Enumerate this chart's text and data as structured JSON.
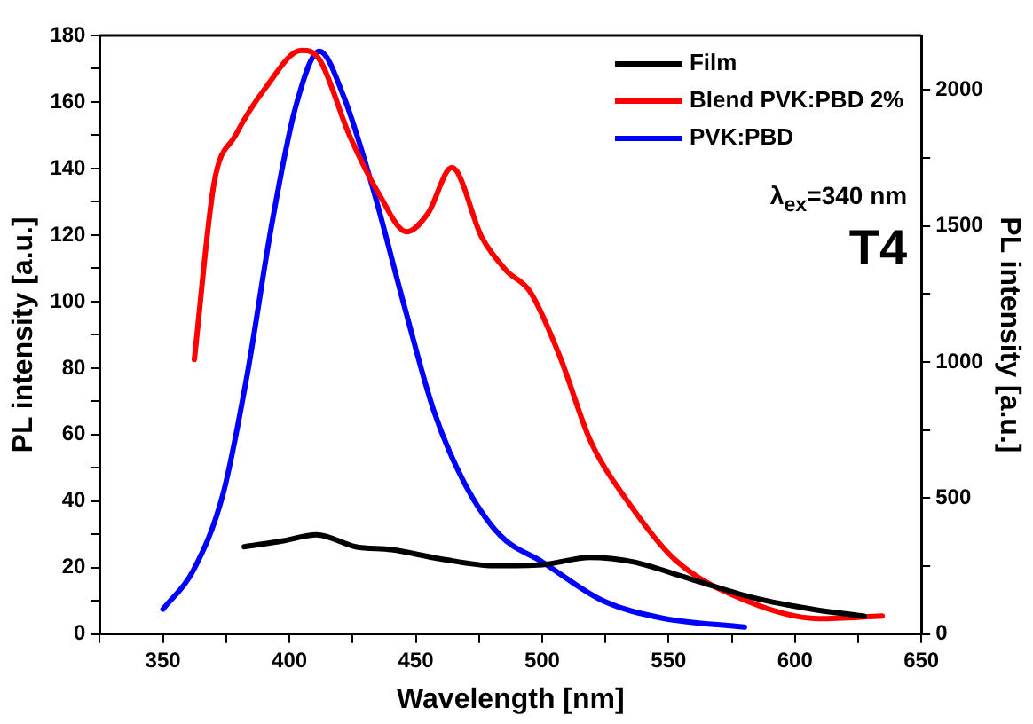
{
  "chart_data": {
    "type": "line",
    "xlabel": "Wavelength [nm]",
    "ylabel": "PL intensity [a.u.]",
    "y2label": "PL intensity [a.u.]",
    "xlim": [
      325,
      650
    ],
    "xticks": [
      {
        "value": 325,
        "label": null
      },
      350,
      {
        "value": 375,
        "label": null
      },
      400,
      {
        "value": 425,
        "label": null
      },
      450,
      {
        "value": 475,
        "label": null
      },
      500,
      {
        "value": 525,
        "label": null
      },
      550,
      {
        "value": 575,
        "label": null
      },
      600,
      {
        "value": 625,
        "label": null
      },
      650
    ],
    "ylim": [
      0,
      180
    ],
    "yticks": [
      0,
      {
        "value": 10,
        "label": null
      },
      20,
      {
        "value": 30,
        "label": null
      },
      40,
      {
        "value": 50,
        "label": null
      },
      60,
      {
        "value": 70,
        "label": null
      },
      80,
      {
        "value": 90,
        "label": null
      },
      100,
      {
        "value": 110,
        "label": null
      },
      120,
      {
        "value": 130,
        "label": null
      },
      140,
      {
        "value": 150,
        "label": null
      },
      160,
      {
        "value": 170,
        "label": null
      },
      180
    ],
    "y2lim": [
      0,
      2200
    ],
    "y2ticks": [
      0,
      {
        "value": 250,
        "label": null
      },
      500,
      {
        "value": 750,
        "label": null
      },
      1000,
      {
        "value": 1250,
        "label": null
      },
      1500,
      {
        "value": 1750,
        "label": null
      },
      2000
    ],
    "grid": false,
    "legend": "top right",
    "marker": "none",
    "line_style": "solid",
    "annotations": [
      "λ$_{ex}$=340 nm",
      "T4"
    ],
    "series": [
      {
        "name": "Film",
        "color": "#000000",
        "x": [
          382.1,
          397.6,
          410.7,
          426.2,
          440.5,
          459.5,
          481,
          500,
          519,
          535.7,
          559.5,
          583.4,
          607.1,
          627.4
        ],
        "values": [
          26.3,
          28.1,
          29.9,
          26.3,
          25.4,
          22.7,
          20.6,
          20.9,
          23.1,
          21.8,
          16.4,
          11,
          7.5,
          5.4
        ]
      },
      {
        "name": "Blend PVK:PBD 2%",
        "color": "#ff0000",
        "x": [
          362.4,
          370.2,
          378.6,
          390.5,
          404.8,
          411.9,
          423.8,
          435.7,
          446.4,
          454.8,
          464.3,
          476.2,
          485.7,
          495.2,
          507.1,
          519,
          533.4,
          552.4,
          580.9,
          609.5,
          634.5
        ],
        "values": [
          82.6,
          135.6,
          149.9,
          164.2,
          175.5,
          172.8,
          149.9,
          132,
          121,
          126.5,
          140.3,
          119.2,
          109.4,
          103,
          83.3,
          58.3,
          40.4,
          22.5,
          10,
          4.7,
          5.5
        ]
      },
      {
        "name": "PVK:PBD",
        "color": "#0000ff",
        "axis": "y2",
        "x": [
          350,
          361.9,
          373.8,
          383.3,
          392.9,
          402.4,
          411.9,
          421.4,
          433.3,
          445.2,
          457.1,
          469,
          483.3,
          500,
          523.8,
          547.6,
          580
        ],
        "values": [
          92,
          233,
          517,
          953,
          1499,
          1935,
          2142,
          1978,
          1630,
          1215,
          822,
          560,
          364,
          266,
          124,
          59,
          26
        ]
      }
    ]
  }
}
